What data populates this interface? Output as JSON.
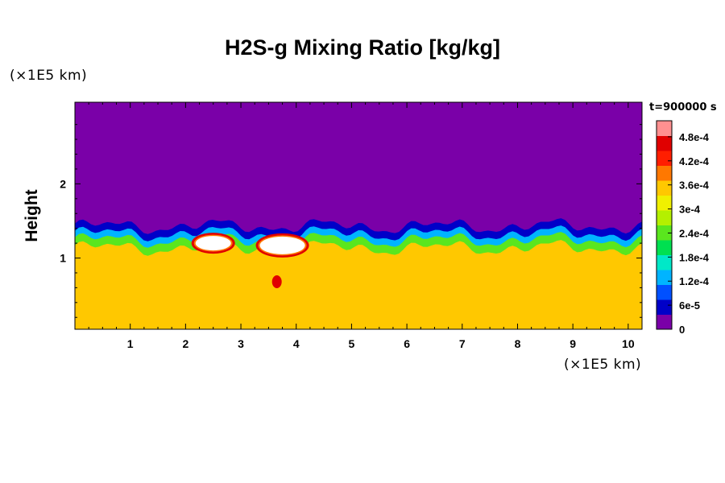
{
  "title": "H2S-g Mixing Ratio [kg/kg]",
  "y_unit_label": "(×1E5 km)",
  "x_unit_label": "(×1E5 km)",
  "ylabel": "Height",
  "time_label": "t=900000 s",
  "chart_data": {
    "type": "heatmap",
    "title": "H2S-g Mixing Ratio [kg/kg]",
    "xlabel": "(×1E5 km)",
    "ylabel": "Height",
    "xlim": [
      0,
      10.25
    ],
    "ylim": [
      0.04,
      3.1
    ],
    "x_ticks": [
      "1",
      "2",
      "3",
      "4",
      "5",
      "6",
      "7",
      "8",
      "9",
      "10"
    ],
    "y_ticks": [
      "1",
      "2"
    ],
    "colorbar": {
      "range": [
        0,
        0.00052
      ],
      "tick_labels": [
        "0",
        "6e-5",
        "1.2e-4",
        "1.8e-4",
        "2.4e-4",
        "3e-4",
        "3.6e-4",
        "4.2e-4",
        "4.8e-4"
      ],
      "tick_values": [
        0,
        6e-05,
        0.00012,
        0.00018,
        0.00024,
        0.0003,
        0.00036,
        0.00042,
        0.00048
      ],
      "colors": [
        "#7a00a8",
        "#0000c8",
        "#0050ff",
        "#00b4ff",
        "#00e8c8",
        "#00e050",
        "#5ae61e",
        "#b4f000",
        "#f0f000",
        "#ffc800",
        "#ff7800",
        "#ff1e00",
        "#e00000",
        "#ff9090"
      ]
    },
    "regions": [
      {
        "name": "upper layer",
        "value": 0.0
      },
      {
        "name": "lower layer",
        "value": 0.00034
      },
      {
        "name": "interface band",
        "value": 0.00012
      },
      {
        "name": "hotspot",
        "value": 0.0005
      }
    ],
    "interface_height": 1.35
  }
}
